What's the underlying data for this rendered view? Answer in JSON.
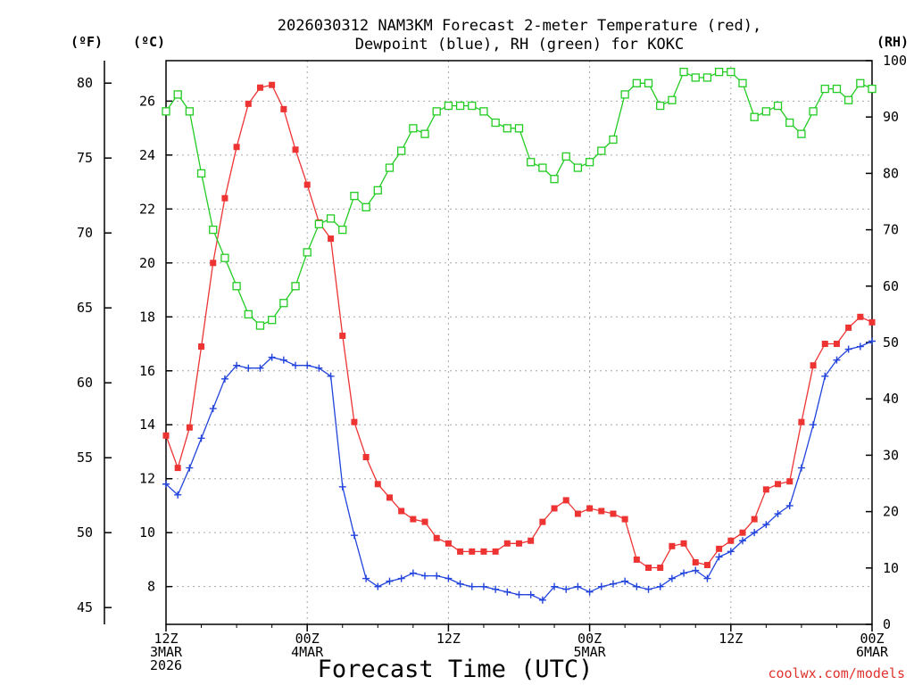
{
  "colors": {
    "temp": "#ee3333",
    "dew": "#2244dd",
    "rh": "#22cc22",
    "grid": "#a6a6a6",
    "credit": "#e0322e"
  },
  "chart_data": {
    "type": "line",
    "title_line1": "2026030312 NAM3KM Forecast 2-meter Temperature (red),",
    "title_line2": "Dewpoint (blue), RH (green) for KOKC",
    "xlabel": "Forecast Time (UTC)",
    "credit": "coolwx.com/models",
    "x_unit": "forecast hour",
    "xlim": [
      0,
      60
    ],
    "x_ticks": [
      {
        "x": 0,
        "lines": [
          "12Z",
          "3MAR",
          "2026"
        ]
      },
      {
        "x": 12,
        "lines": [
          "00Z",
          "4MAR"
        ]
      },
      {
        "x": 24,
        "lines": [
          "12Z"
        ]
      },
      {
        "x": 36,
        "lines": [
          "00Z",
          "5MAR"
        ]
      },
      {
        "x": 48,
        "lines": [
          "12Z"
        ]
      },
      {
        "x": 60,
        "lines": [
          "00Z",
          "6MAR"
        ]
      }
    ],
    "y_celsius": {
      "label": "(ºC)",
      "range": [
        6.6,
        27.5
      ],
      "ticks": [
        8,
        10,
        12,
        14,
        16,
        18,
        20,
        22,
        24,
        26
      ]
    },
    "y_fahrenheit": {
      "label": "(ºF)",
      "ticks": [
        45,
        50,
        55,
        60,
        65,
        70,
        75,
        80
      ]
    },
    "y_rh": {
      "label": "(RH)",
      "range": [
        0,
        100
      ],
      "ticks": [
        0,
        10,
        20,
        30,
        40,
        50,
        60,
        70,
        80,
        90,
        100
      ]
    },
    "series": [
      {
        "name": "Temperature",
        "unit": "C",
        "color": "#ee3333",
        "marker": "filled-square",
        "values": [
          13.6,
          12.4,
          13.9,
          16.9,
          20.0,
          22.4,
          24.3,
          25.9,
          26.5,
          26.6,
          25.7,
          24.2,
          22.9,
          21.5,
          20.9,
          17.3,
          14.1,
          12.8,
          11.8,
          11.3,
          10.8,
          10.5,
          10.4,
          9.8,
          9.6,
          9.3,
          9.3,
          9.3,
          9.3,
          9.6,
          9.6,
          9.7,
          10.4,
          10.9,
          11.2,
          10.7,
          10.9,
          10.8,
          10.7,
          10.5,
          9.0,
          8.7,
          8.7,
          9.5,
          9.6,
          8.9,
          8.8,
          9.4,
          9.7,
          10.0,
          10.5,
          11.6,
          11.8,
          11.9,
          14.1,
          16.2,
          17.0,
          17.0,
          17.6,
          18.0,
          17.8
        ]
      },
      {
        "name": "Dewpoint",
        "unit": "C",
        "color": "#2244dd",
        "marker": "plus",
        "values": [
          11.8,
          11.4,
          12.4,
          13.5,
          14.6,
          15.7,
          16.2,
          16.1,
          16.1,
          16.5,
          16.4,
          16.2,
          16.2,
          16.1,
          15.8,
          11.7,
          9.9,
          8.3,
          8.0,
          8.2,
          8.3,
          8.5,
          8.4,
          8.4,
          8.3,
          8.1,
          8.0,
          8.0,
          7.9,
          7.8,
          7.7,
          7.7,
          7.5,
          8.0,
          7.9,
          8.0,
          7.8,
          8.0,
          8.1,
          8.2,
          8.0,
          7.9,
          8.0,
          8.3,
          8.5,
          8.6,
          8.3,
          9.1,
          9.3,
          9.7,
          10.0,
          10.3,
          10.7,
          11.0,
          12.4,
          14.0,
          15.8,
          16.4,
          16.8,
          16.9,
          17.1
        ]
      },
      {
        "name": "RH",
        "unit": "%",
        "color": "#22cc22",
        "marker": "open-square",
        "values": [
          91,
          94,
          91,
          80,
          70,
          65,
          60,
          55,
          53,
          54,
          57,
          60,
          66,
          71,
          72,
          70,
          76,
          74,
          77,
          81,
          84,
          88,
          87,
          91,
          92,
          92,
          92,
          91,
          89,
          88,
          88,
          82,
          81,
          79,
          83,
          81,
          82,
          84,
          86,
          94,
          96,
          96,
          92,
          93,
          98,
          97,
          97,
          98,
          98,
          96,
          90,
          91,
          92,
          89,
          87,
          91,
          95,
          95,
          93,
          96,
          95
        ]
      }
    ]
  }
}
